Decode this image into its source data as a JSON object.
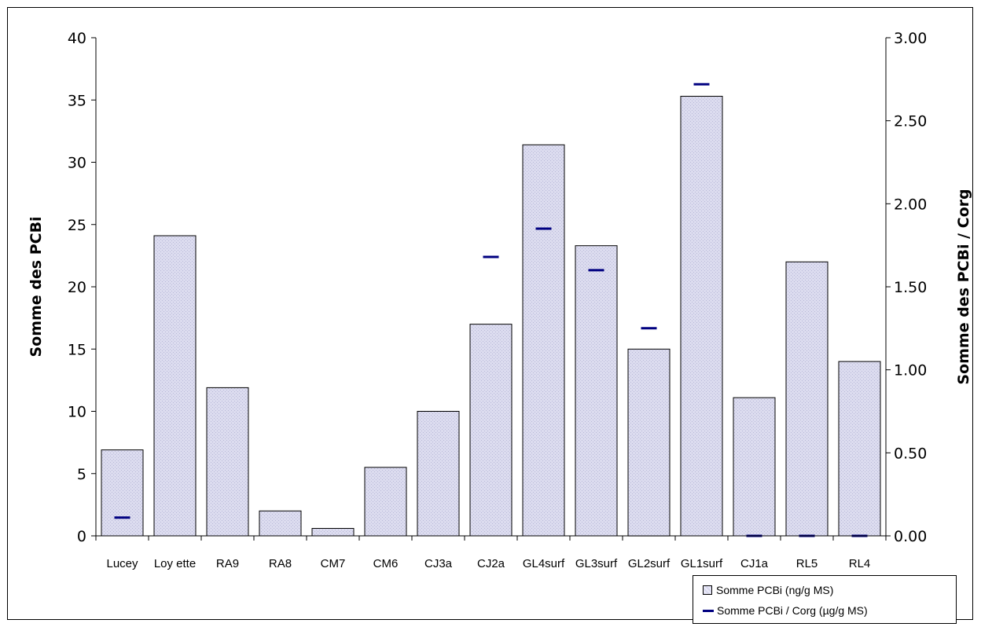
{
  "chart_data": {
    "type": "bar",
    "categories": [
      "Lucey",
      "Loy ette",
      "RA9",
      "RA8",
      "CM7",
      "CM6",
      "CJ3a",
      "CJ2a",
      "GL4surf",
      "GL3surf",
      "GL2surf",
      "GL1surf",
      "CJ1a",
      "RL5",
      "RL4"
    ],
    "series": [
      {
        "name": "Somme PCBi (ng/g MS)",
        "axis": "left",
        "mark": "bar",
        "color": "#dcdcef",
        "values": [
          6.9,
          24.1,
          11.9,
          2.0,
          0.6,
          5.5,
          10.0,
          17.0,
          31.4,
          23.3,
          15.0,
          35.3,
          11.1,
          22.0,
          14.0
        ]
      },
      {
        "name": "Somme PCBi / Corg (µg/g MS)",
        "axis": "right",
        "mark": "dash",
        "color": "#000080",
        "values": [
          0.11,
          null,
          null,
          null,
          null,
          null,
          null,
          1.68,
          1.85,
          1.6,
          1.25,
          2.72,
          0.0,
          0.0,
          0.0
        ]
      }
    ],
    "y_left": {
      "label": "Somme des PCBi",
      "range": [
        0,
        40
      ],
      "ticks": [
        "0",
        "5",
        "10",
        "15",
        "20",
        "25",
        "30",
        "35",
        "40"
      ]
    },
    "y_right": {
      "label": "Somme des PCBi / Corg",
      "range": [
        0,
        3
      ],
      "ticks": [
        "0.00",
        "0.50",
        "1.00",
        "1.50",
        "2.00",
        "2.50",
        "3.00"
      ]
    },
    "grid": false,
    "legend_position": "bottom-right"
  },
  "legend": {
    "bar_label": "Somme PCBi (ng/g MS)",
    "line_label": "Somme PCBi / Corg (µg/g MS)"
  }
}
